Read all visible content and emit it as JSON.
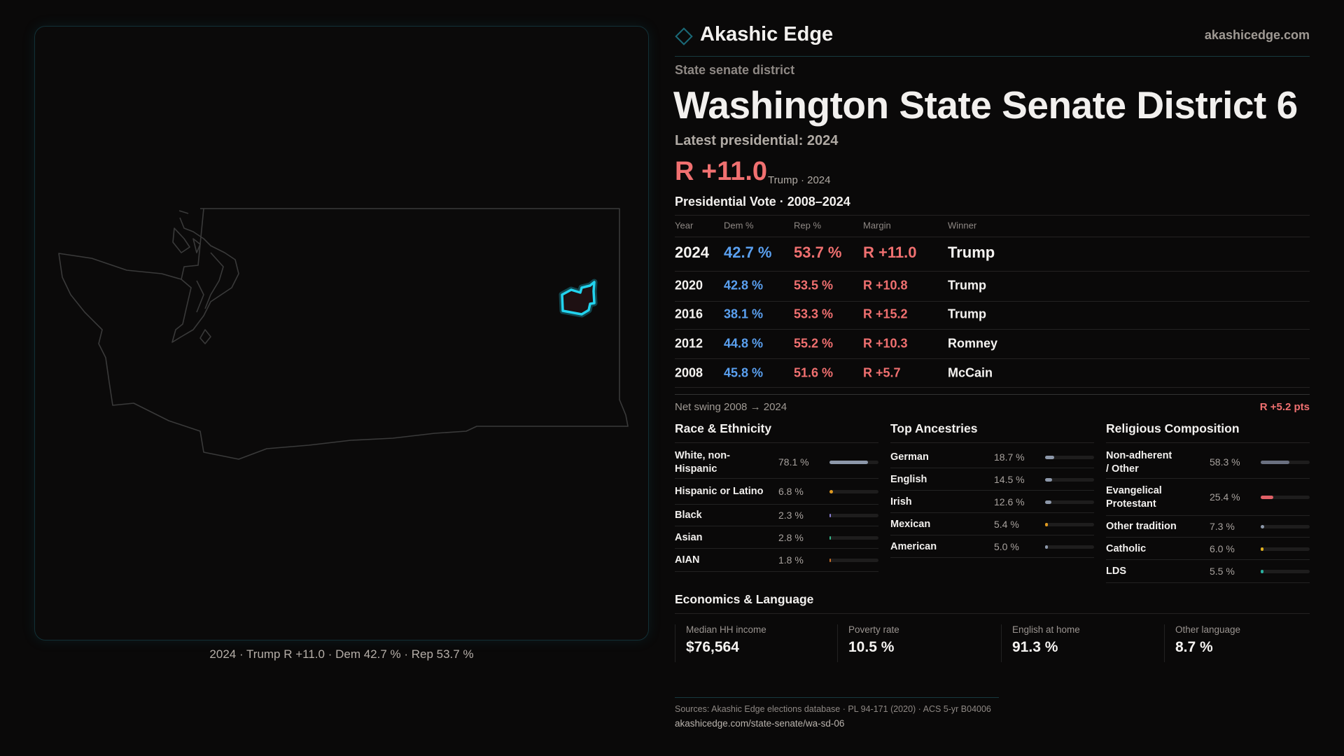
{
  "map": {
    "caption": "2024 · Trump R +11.0 · Dem 42.7 % · Rep 53.7 %",
    "highlight_color": "#22d3ee"
  },
  "header": {
    "brand": "Akashic Edge",
    "site": "akashicedge.com",
    "accent": "#22d3ee"
  },
  "district": {
    "type_label": "State senate district",
    "title": "Washington State Senate District 6",
    "latest_label": "Latest presidential: 2024",
    "margin": "R +11.0",
    "margin_sub": "Trump · 2024"
  },
  "vote_table": {
    "title": "Presidential Vote · 2008–2024",
    "headers": [
      "Year",
      "Dem %",
      "Rep %",
      "Margin",
      "Winner"
    ],
    "rows": [
      {
        "year": "2024",
        "dem": "42.7 %",
        "rep": "53.7 %",
        "margin": "R +11.0",
        "winner": "Trump"
      },
      {
        "year": "2020",
        "dem": "42.8 %",
        "rep": "53.5 %",
        "margin": "R +10.8",
        "winner": "Trump"
      },
      {
        "year": "2016",
        "dem": "38.1 %",
        "rep": "53.3 %",
        "margin": "R +15.2",
        "winner": "Trump"
      },
      {
        "year": "2012",
        "dem": "44.8 %",
        "rep": "55.2 %",
        "margin": "R +10.3",
        "winner": "Romney"
      },
      {
        "year": "2008",
        "dem": "45.8 %",
        "rep": "51.6 %",
        "margin": "R +5.7",
        "winner": "McCain"
      }
    ],
    "swing_label": "Net swing 2008 → 2024",
    "swing_value": "R +5.2 pts",
    "dem_color": "#5aa0f0",
    "rep_color": "#f07070"
  },
  "sections": [
    {
      "title": "Race & Ethnicity",
      "items": [
        {
          "label": "White, non-Hispanic",
          "value": "78.1 %",
          "pct": 78.1,
          "color": "#8d98aa"
        },
        {
          "label": "Hispanic or Latino",
          "value": "6.8 %",
          "pct": 6.8,
          "color": "#e09a20"
        },
        {
          "label": "Black",
          "value": "2.3 %",
          "pct": 2.3,
          "color": "#8b7fd6"
        },
        {
          "label": "Asian",
          "value": "2.8 %",
          "pct": 2.8,
          "color": "#34b88a"
        },
        {
          "label": "AIAN",
          "value": "1.8 %",
          "pct": 1.8,
          "color": "#c8702a"
        }
      ]
    },
    {
      "title": "Top Ancestries",
      "items": [
        {
          "label": "German",
          "value": "18.7 %",
          "pct": 18.7,
          "color": "#8d98aa"
        },
        {
          "label": "English",
          "value": "14.5 %",
          "pct": 14.5,
          "color": "#8d98aa"
        },
        {
          "label": "Irish",
          "value": "12.6 %",
          "pct": 12.6,
          "color": "#8d98aa"
        },
        {
          "label": "Mexican",
          "value": "5.4 %",
          "pct": 5.4,
          "color": "#e09a20"
        },
        {
          "label": "American",
          "value": "5.0 %",
          "pct": 5.0,
          "color": "#8d98aa"
        }
      ]
    },
    {
      "title": "Religious Composition",
      "items": [
        {
          "label": "Non-adherent / Other",
          "value": "58.3 %",
          "pct": 58.3,
          "color": "#6a7080"
        },
        {
          "label": "Evangelical Protestant",
          "value": "25.4 %",
          "pct": 25.4,
          "color": "#e06066"
        },
        {
          "label": "Other tradition",
          "value": "7.3 %",
          "pct": 7.3,
          "color": "#8d98aa"
        },
        {
          "label": "Catholic",
          "value": "6.0 %",
          "pct": 6.0,
          "color": "#e0b020"
        },
        {
          "label": "LDS",
          "value": "5.5 %",
          "pct": 5.5,
          "color": "#2ab0a0"
        }
      ]
    }
  ],
  "economics": {
    "title": "Economics & Language",
    "tiles": [
      {
        "label": "Median HH income",
        "value": "$76,564"
      },
      {
        "label": "Poverty rate",
        "value": "10.5 %"
      },
      {
        "label": "English at home",
        "value": "91.3 %"
      },
      {
        "label": "Other language",
        "value": "8.7 %"
      }
    ]
  },
  "footer": {
    "sources": "Sources: Akashic Edge elections database · PL 94-171 (2020) · ACS 5-yr B04006",
    "url": "akashicedge.com/state-senate/wa-sd-06"
  }
}
